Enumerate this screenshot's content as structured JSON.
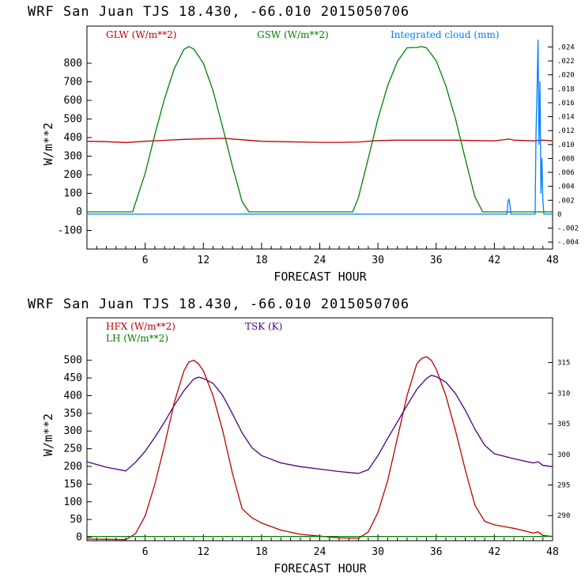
{
  "chart_data": [
    {
      "type": "line",
      "title": "WRF  San Juan TJS  18.430, -66.010  2015050706",
      "xlabel": "FORECAST HOUR",
      "ylabel": "W/m**2",
      "xlim": [
        0,
        48
      ],
      "ylim": [
        -200,
        1000
      ],
      "xticks": [
        "6",
        "12",
        "18",
        "24",
        "30",
        "36",
        "42",
        "48"
      ],
      "yticks": [
        "-100",
        "0",
        "100",
        "200",
        "300",
        "400",
        "500",
        "600",
        "700",
        "800"
      ],
      "y2lim": [
        -0.005,
        0.027
      ],
      "y2ticks": [
        ".024",
        ".022",
        ".020",
        ".018",
        ".016",
        ".014",
        ".012",
        ".010",
        ".008",
        ".006",
        ".004",
        ".002",
        "0",
        "-.002",
        "-.004"
      ],
      "colors": {
        "GLW": "#c00000",
        "GSW": "#008000",
        "CLOUD": "#0080ff"
      },
      "legend": [
        "GLW (W/m**2)",
        "GSW (W/m**2)",
        "Integrated cloud (mm)"
      ],
      "series": [
        {
          "name": "GLW (W/m**2)",
          "axis": "left",
          "color": "#c00000",
          "x": [
            0,
            2,
            4,
            6,
            8,
            10,
            12,
            14,
            16,
            18,
            20,
            22,
            24,
            26,
            28,
            30,
            32,
            34,
            36,
            38,
            40,
            42,
            43.5,
            44,
            46,
            47,
            48
          ],
          "values": [
            380,
            378,
            373,
            380,
            385,
            390,
            393,
            396,
            388,
            380,
            378,
            376,
            374,
            374,
            376,
            384,
            386,
            386,
            386,
            386,
            384,
            382,
            392,
            386,
            382,
            386,
            382
          ]
        },
        {
          "name": "GSW (W/m**2)",
          "axis": "left",
          "color": "#008000",
          "x": [
            0,
            4,
            4.7,
            6,
            7,
            8,
            9,
            10,
            10.5,
            11,
            12,
            13,
            14,
            15,
            16,
            16.7,
            20,
            24,
            27.4,
            28,
            29,
            30,
            31,
            32,
            33,
            34,
            34.5,
            35,
            36,
            37,
            38,
            39,
            40,
            40.8,
            44,
            48
          ],
          "values": [
            0,
            0,
            0,
            207,
            416,
            610,
            770,
            875,
            890,
            877,
            800,
            652,
            453,
            244,
            55,
            0,
            0,
            0,
            0,
            80,
            289,
            501,
            680,
            810,
            883,
            885,
            890,
            883,
            813,
            678,
            499,
            285,
            80,
            0,
            0,
            0
          ]
        },
        {
          "name": "Integrated cloud (mm)",
          "axis": "right",
          "color": "#0080ff",
          "x": [
            0,
            43.3,
            43.4,
            43.5,
            43.6,
            43.7,
            46.2,
            46.3,
            46.4,
            46.5,
            46.6,
            46.7,
            46.8,
            46.9,
            47.0,
            47.1,
            48
          ],
          "values": [
            0,
            0,
            0.0018,
            0.0022,
            0.0014,
            0,
            0,
            0.012,
            0.018,
            0.025,
            0.01,
            0.019,
            0.003,
            0.008,
            0.002,
            0,
            0
          ]
        }
      ]
    },
    {
      "type": "line",
      "title": "WRF  San Juan TJS  18.430, -66.010  2015050706",
      "xlabel": "FORECAST HOUR",
      "ylabel": "W/m**2",
      "xlim": [
        0,
        48
      ],
      "ylim": [
        -10,
        620
      ],
      "xticks": [
        "6",
        "12",
        "18",
        "24",
        "30",
        "36",
        "42",
        "48"
      ],
      "yticks": [
        "0",
        "50",
        "100",
        "150",
        "200",
        "250",
        "300",
        "350",
        "400",
        "450",
        "500"
      ],
      "y2lim": [
        285.9,
        322.3
      ],
      "y2ticks": [
        "290",
        "295",
        "300",
        "305",
        "310",
        "315"
      ],
      "colors": {
        "HFX": "#c00000",
        "LH": "#008000",
        "TSK": "#4b0082"
      },
      "legend": [
        "HFX (W/m**2)",
        "LH  (W/m**2)",
        "TSK (K)"
      ],
      "series": [
        {
          "name": "HFX (W/m**2)",
          "axis": "left",
          "color": "#c00000",
          "x": [
            0,
            2,
            4,
            5,
            6,
            7,
            8,
            9,
            10,
            10.5,
            11,
            11.5,
            12,
            13,
            14,
            15,
            16,
            17,
            18,
            20,
            22,
            24,
            26,
            28,
            29,
            30,
            31,
            32,
            33,
            34,
            34.5,
            35,
            35.5,
            36,
            37,
            38,
            39,
            40,
            41,
            42,
            44,
            46,
            46.5,
            47,
            48
          ],
          "values": [
            -5,
            -6,
            -7,
            10,
            60,
            150,
            260,
            380,
            470,
            495,
            500,
            490,
            470,
            400,
            300,
            180,
            80,
            55,
            40,
            20,
            8,
            3,
            -2,
            -3,
            15,
            70,
            160,
            280,
            400,
            490,
            505,
            510,
            500,
            475,
            400,
            300,
            190,
            90,
            45,
            35,
            25,
            12,
            15,
            5,
            2
          ]
        },
        {
          "name": "LH  (W/m**2)",
          "axis": "left",
          "color": "#008000",
          "x": [
            0,
            48
          ],
          "values": [
            2,
            2
          ]
        },
        {
          "name": "TSK (K)",
          "axis": "right",
          "color": "#4b0082",
          "x": [
            0,
            2,
            3,
            4,
            5,
            6,
            7,
            8,
            9,
            10,
            11,
            11.5,
            12,
            13,
            14,
            15,
            16,
            17,
            18,
            20,
            22,
            24,
            26,
            28,
            29,
            30,
            31,
            32,
            33,
            34,
            35,
            35.5,
            36,
            37,
            38,
            39,
            40,
            41,
            42,
            44,
            46,
            46.5,
            47,
            48
          ],
          "values": [
            298.8,
            297.9,
            297.6,
            297.3,
            298.7,
            300.5,
            302.8,
            305.3,
            308.0,
            310.4,
            312.3,
            312.6,
            312.4,
            311.6,
            309.6,
            306.6,
            303.5,
            301.1,
            299.8,
            298.6,
            298.0,
            297.6,
            297.2,
            296.9,
            297.5,
            299.8,
            302.6,
            305.3,
            308.0,
            310.6,
            312.4,
            312.9,
            312.7,
            311.8,
            309.9,
            307.2,
            304.1,
            301.5,
            300.1,
            299.3,
            298.6,
            298.8,
            298.2,
            298.0
          ]
        }
      ]
    }
  ]
}
